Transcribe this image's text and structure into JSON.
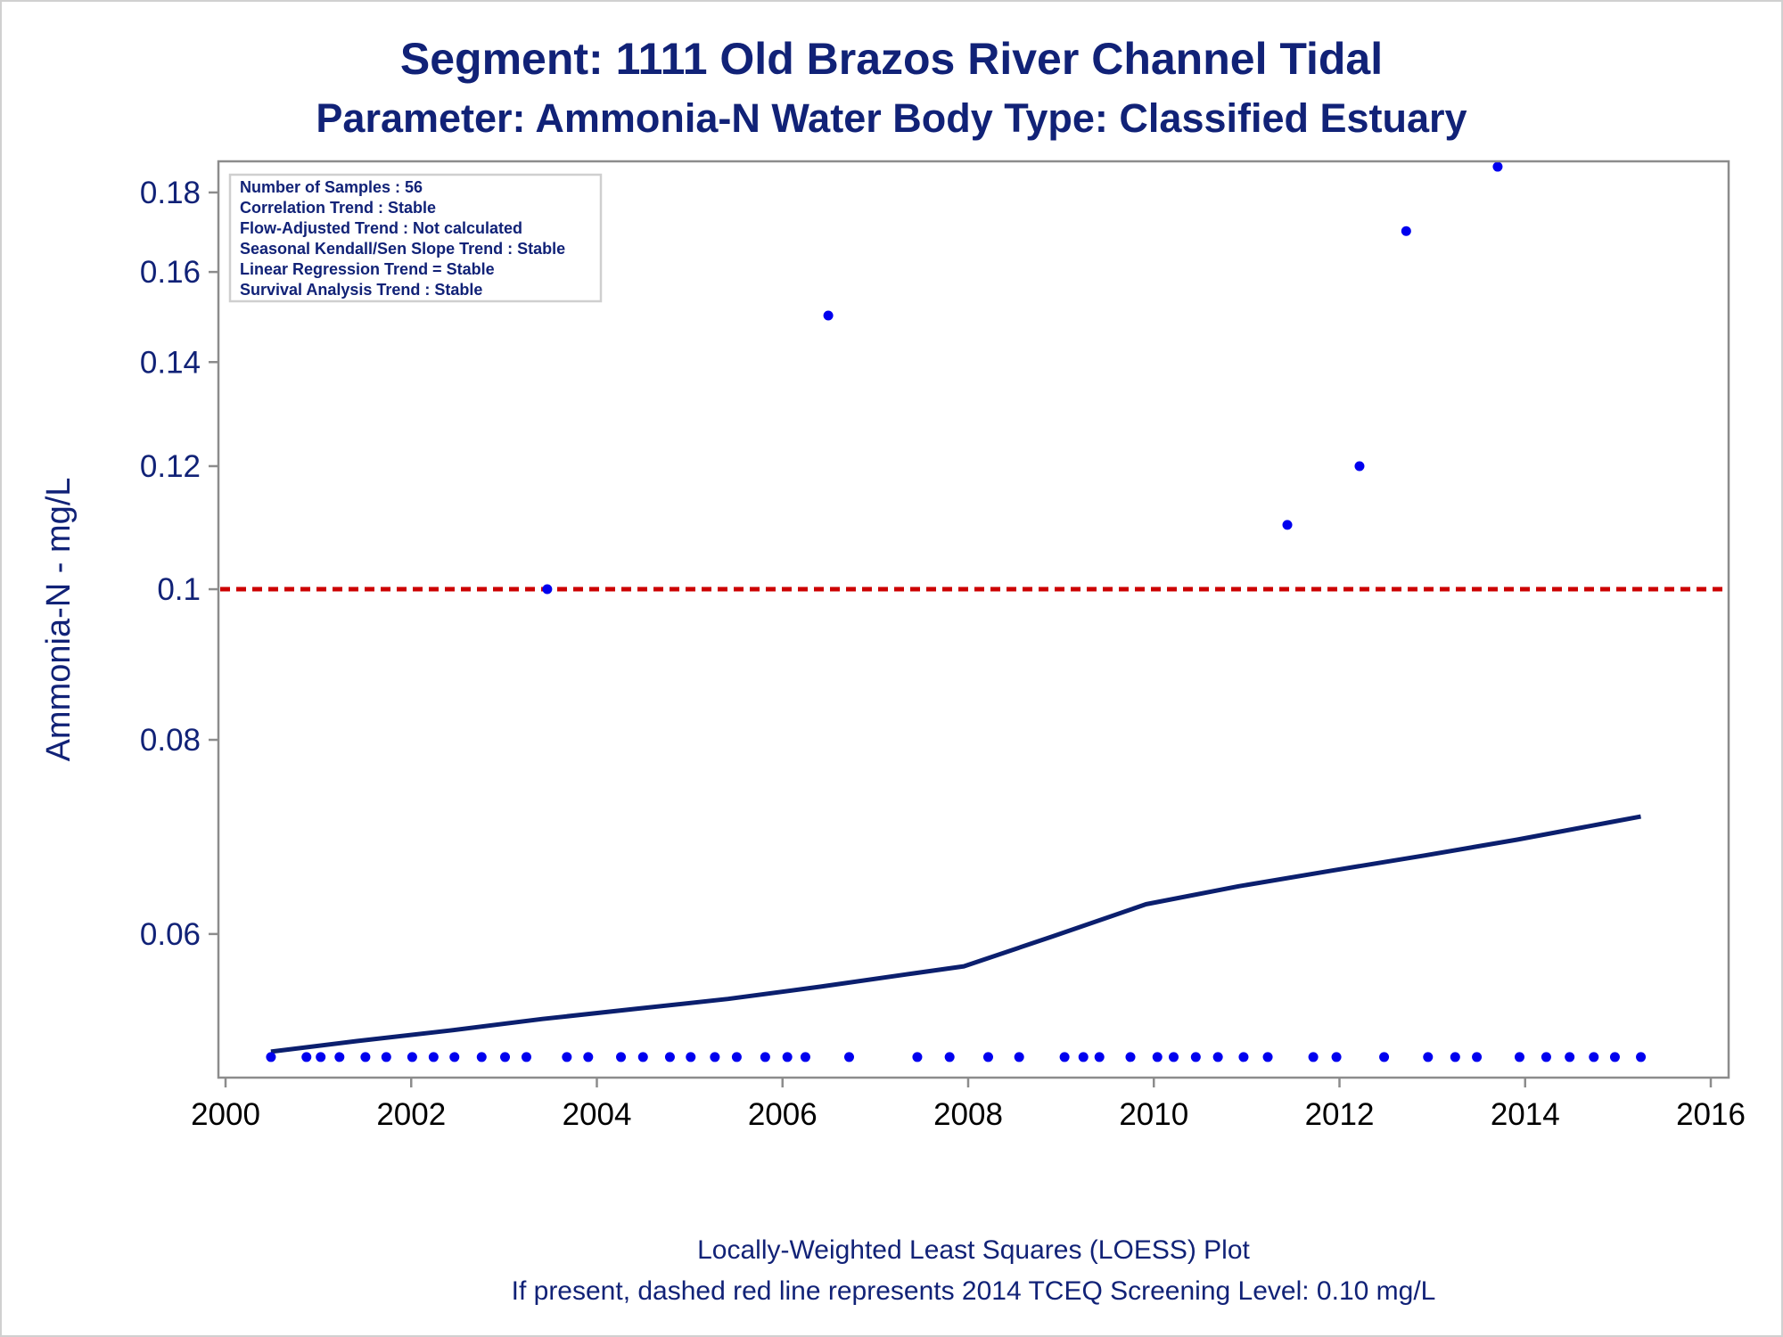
{
  "chart_data": {
    "type": "scatter",
    "title": "Segment: 1111  Old Brazos River Channel Tidal",
    "subtitle": "Parameter: Ammonia-N   Water Body Type: Classified Estuary",
    "ylabel": "Ammonia-N - mg/L",
    "xlabel": "",
    "x_axis": {
      "type": "date",
      "range": [
        "2000-01-01",
        "2016-01-01"
      ]
    },
    "y_axis": {
      "type": "log",
      "range": [
        0.0485,
        0.19
      ]
    },
    "x_ticks": [
      "2000",
      "2002",
      "2004",
      "2006",
      "2008",
      "2010",
      "2012",
      "2014",
      "2016"
    ],
    "y_ticks": [
      {
        "value": 0.06,
        "label": "0.06"
      },
      {
        "value": 0.08,
        "label": "0.08"
      },
      {
        "value": 0.1,
        "label": "0.1"
      },
      {
        "value": 0.12,
        "label": "0.12"
      },
      {
        "value": 0.14,
        "label": "0.14"
      },
      {
        "value": 0.16,
        "label": "0.16"
      },
      {
        "value": 0.18,
        "label": "0.18"
      }
    ],
    "grid": false,
    "screening_level": {
      "value": 0.1,
      "style": "dashed",
      "color": "#cc0000"
    },
    "stats_box": {
      "placement": "top-left",
      "lines": [
        "Number of Samples : 56",
        "Correlation Trend : Stable",
        "Flow-Adjusted Trend : Not calculated",
        "Seasonal Kendall/Sen Slope Trend : Stable",
        "Linear Regression Trend = Stable",
        "Survival Analysis Trend : Stable"
      ]
    },
    "samples": {
      "color": "#0000ee",
      "points": [
        {
          "x": "2000-06-28",
          "y": 0.05
        },
        {
          "x": "2000-11-15",
          "y": 0.05
        },
        {
          "x": "2001-01-10",
          "y": 0.05
        },
        {
          "x": "2001-03-25",
          "y": 0.05
        },
        {
          "x": "2001-07-05",
          "y": 0.05
        },
        {
          "x": "2001-09-25",
          "y": 0.05
        },
        {
          "x": "2002-01-05",
          "y": 0.05
        },
        {
          "x": "2002-03-30",
          "y": 0.05
        },
        {
          "x": "2002-06-20",
          "y": 0.05
        },
        {
          "x": "2002-10-05",
          "y": 0.05
        },
        {
          "x": "2003-01-05",
          "y": 0.05
        },
        {
          "x": "2003-03-30",
          "y": 0.05
        },
        {
          "x": "2003-06-20",
          "y": 0.1
        },
        {
          "x": "2003-09-05",
          "y": 0.05
        },
        {
          "x": "2003-11-28",
          "y": 0.05
        },
        {
          "x": "2004-04-05",
          "y": 0.05
        },
        {
          "x": "2004-07-01",
          "y": 0.05
        },
        {
          "x": "2004-10-15",
          "y": 0.05
        },
        {
          "x": "2005-01-05",
          "y": 0.05
        },
        {
          "x": "2005-04-10",
          "y": 0.05
        },
        {
          "x": "2005-07-05",
          "y": 0.05
        },
        {
          "x": "2005-10-25",
          "y": 0.05
        },
        {
          "x": "2006-01-20",
          "y": 0.05
        },
        {
          "x": "2006-04-01",
          "y": 0.05
        },
        {
          "x": "2006-06-30",
          "y": 0.15
        },
        {
          "x": "2006-09-20",
          "y": 0.05
        },
        {
          "x": "2007-06-15",
          "y": 0.05
        },
        {
          "x": "2007-10-20",
          "y": 0.05
        },
        {
          "x": "2008-03-20",
          "y": 0.05
        },
        {
          "x": "2008-07-20",
          "y": 0.05
        },
        {
          "x": "2009-01-15",
          "y": 0.05
        },
        {
          "x": "2009-03-30",
          "y": 0.05
        },
        {
          "x": "2009-06-01",
          "y": 0.05
        },
        {
          "x": "2009-10-01",
          "y": 0.05
        },
        {
          "x": "2010-01-15",
          "y": 0.05
        },
        {
          "x": "2010-03-20",
          "y": 0.05
        },
        {
          "x": "2010-06-15",
          "y": 0.05
        },
        {
          "x": "2010-09-10",
          "y": 0.05
        },
        {
          "x": "2010-12-20",
          "y": 0.05
        },
        {
          "x": "2011-03-25",
          "y": 0.05
        },
        {
          "x": "2011-06-10",
          "y": 0.11
        },
        {
          "x": "2011-09-20",
          "y": 0.05
        },
        {
          "x": "2011-12-20",
          "y": 0.05
        },
        {
          "x": "2012-03-20",
          "y": 0.12
        },
        {
          "x": "2012-06-25",
          "y": 0.05
        },
        {
          "x": "2012-09-20",
          "y": 0.17
        },
        {
          "x": "2012-12-15",
          "y": 0.05
        },
        {
          "x": "2013-04-01",
          "y": 0.05
        },
        {
          "x": "2013-06-25",
          "y": 0.05
        },
        {
          "x": "2013-09-15",
          "y": 0.187
        },
        {
          "x": "2013-12-10",
          "y": 0.05
        },
        {
          "x": "2014-03-25",
          "y": 0.05
        },
        {
          "x": "2014-06-25",
          "y": 0.05
        },
        {
          "x": "2014-09-28",
          "y": 0.05
        },
        {
          "x": "2014-12-20",
          "y": 0.05
        },
        {
          "x": "2015-04-01",
          "y": 0.05
        }
      ]
    },
    "loess": {
      "color": "#0b1f6e",
      "points": [
        {
          "x": "2000-06-28",
          "y": 0.0504
        },
        {
          "x": "2001-06-01",
          "y": 0.0512
        },
        {
          "x": "2002-06-01",
          "y": 0.052
        },
        {
          "x": "2003-06-01",
          "y": 0.0529
        },
        {
          "x": "2004-06-01",
          "y": 0.0537
        },
        {
          "x": "2005-06-01",
          "y": 0.0545
        },
        {
          "x": "2006-06-01",
          "y": 0.0555
        },
        {
          "x": "2007-06-01",
          "y": 0.0566
        },
        {
          "x": "2007-12-15",
          "y": 0.0572
        },
        {
          "x": "2008-12-01",
          "y": 0.0598
        },
        {
          "x": "2009-12-01",
          "y": 0.0627
        },
        {
          "x": "2010-12-01",
          "y": 0.0644
        },
        {
          "x": "2011-12-01",
          "y": 0.0659
        },
        {
          "x": "2012-12-01",
          "y": 0.0674
        },
        {
          "x": "2013-12-01",
          "y": 0.069
        },
        {
          "x": "2014-12-01",
          "y": 0.0708
        },
        {
          "x": "2015-04-01",
          "y": 0.0714
        }
      ]
    },
    "notes": [
      "Locally-Weighted Least Squares (LOESS) Plot",
      "If present, dashed red line represents 2014 TCEQ Screening Level: 0.10 mg/L"
    ]
  }
}
